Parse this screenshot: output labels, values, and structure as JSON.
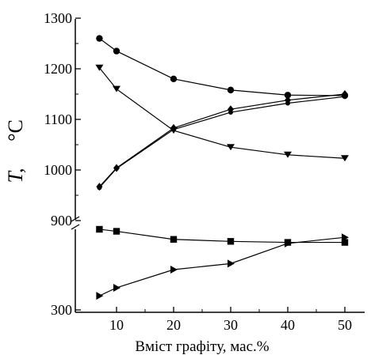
{
  "chart_data": {
    "type": "line",
    "xlabel": "Вміст графіту, мас.%",
    "ylabel_symbol": "T,",
    "ylabel_unit": "°C",
    "x_ticks": [
      10,
      20,
      30,
      40,
      50
    ],
    "upper_panel": {
      "y_ticks": [
        900,
        1000,
        1100,
        1200,
        1300
      ],
      "ylim": [
        880,
        1300
      ]
    },
    "lower_panel": {
      "y_ticks": [
        300
      ],
      "tick_label_900_shown_at_top": true
    },
    "series": [
      {
        "marker": "circle",
        "panel": "upper",
        "x": [
          7,
          10,
          20,
          30,
          40,
          50
        ],
        "y": [
          1260,
          1235,
          1180,
          1158,
          1148,
          1147
        ]
      },
      {
        "marker": "triangle-down",
        "panel": "upper",
        "x": [
          7,
          10,
          20,
          30,
          40,
          50
        ],
        "y": [
          1202,
          1160,
          1078,
          1045,
          1030,
          1023
        ]
      },
      {
        "marker": "diamond",
        "panel": "upper",
        "x": [
          7,
          10,
          20,
          30,
          40,
          50
        ],
        "y": [
          967,
          1004,
          1083,
          1120,
          1138,
          1150
        ]
      },
      {
        "marker": "circle-small",
        "panel": "upper",
        "x": [
          7,
          10,
          20,
          30,
          40,
          50
        ],
        "y": [
          965,
          1003,
          1080,
          1114,
          1132,
          1145
        ]
      },
      {
        "marker": "square",
        "panel": "lower",
        "x": [
          7,
          10,
          20,
          30,
          40,
          50
        ],
        "y": [
          700,
          690,
          650,
          640,
          635,
          635
        ]
      },
      {
        "marker": "triangle-right",
        "panel": "lower",
        "x": [
          7,
          10,
          20,
          30,
          40,
          50
        ],
        "y": [
          370,
          410,
          500,
          530,
          630,
          660
        ]
      }
    ]
  }
}
